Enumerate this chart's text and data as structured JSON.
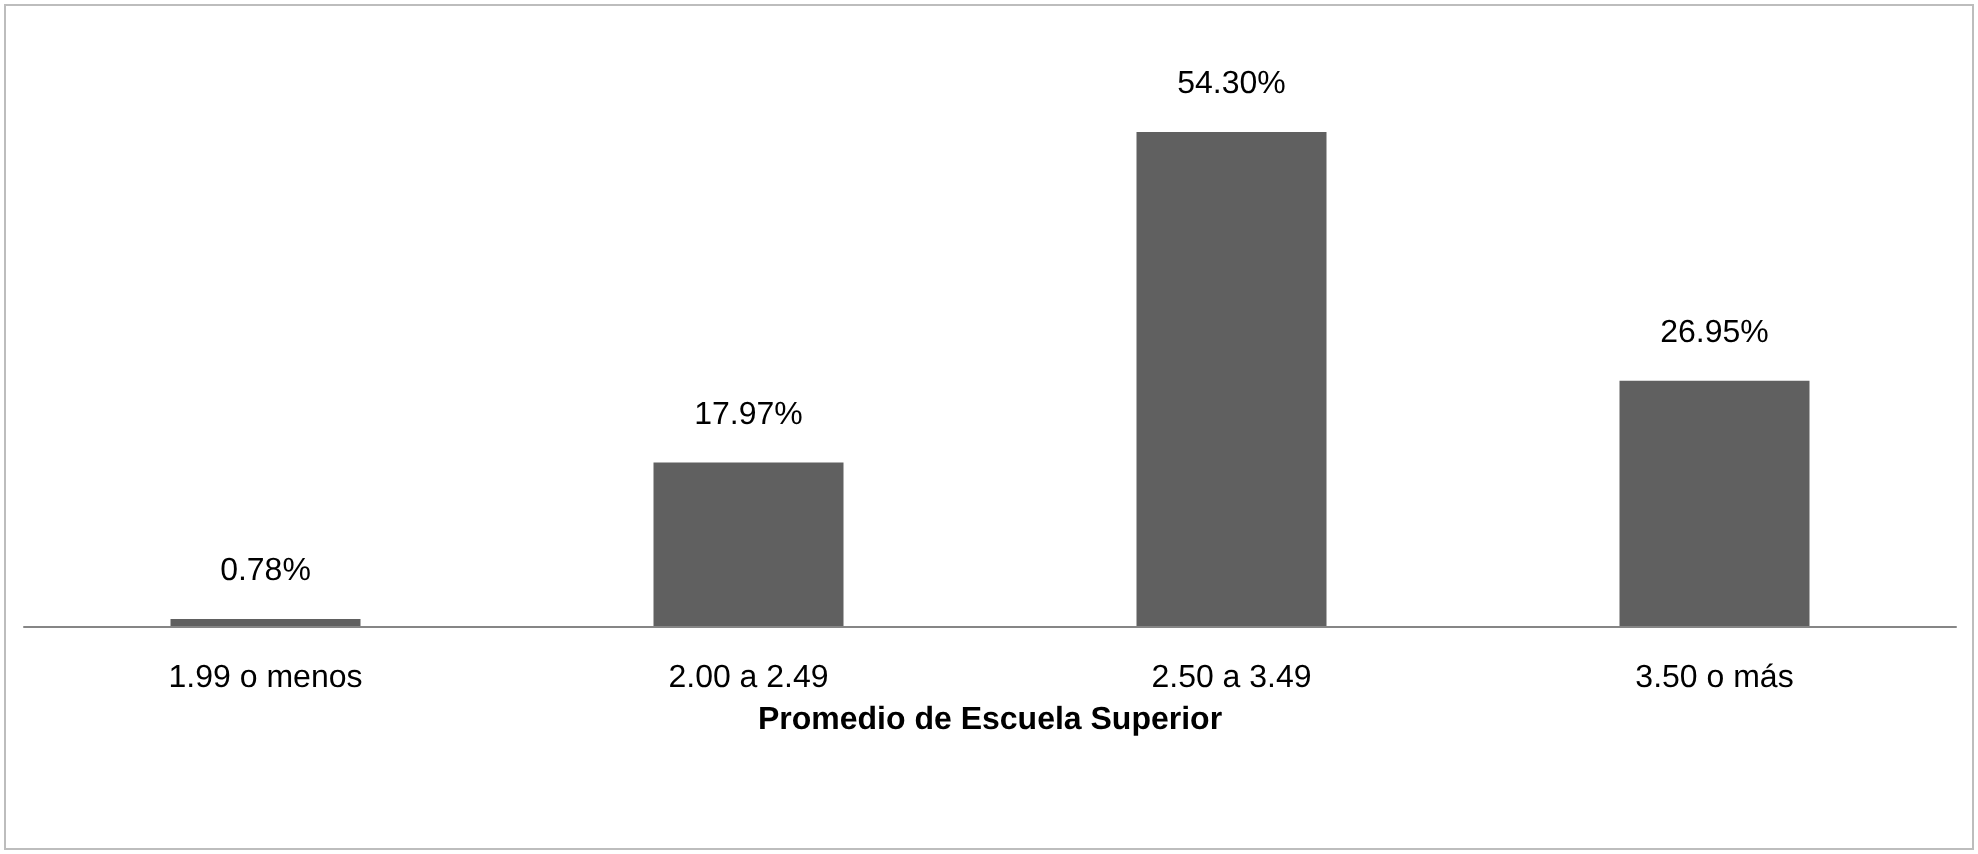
{
  "chart_data": {
    "type": "bar",
    "xlabel": "Promedio de Escuela Superior",
    "categories": [
      "1.99 o menos",
      "2.00 a 2.49",
      "2.50 a 3.49",
      "3.50 o más"
    ],
    "values": [
      0.78,
      17.97,
      54.3,
      26.95
    ],
    "value_labels": [
      "0.78%",
      "17.97%",
      "54.30%",
      "26.95%"
    ],
    "color": "#606060"
  }
}
